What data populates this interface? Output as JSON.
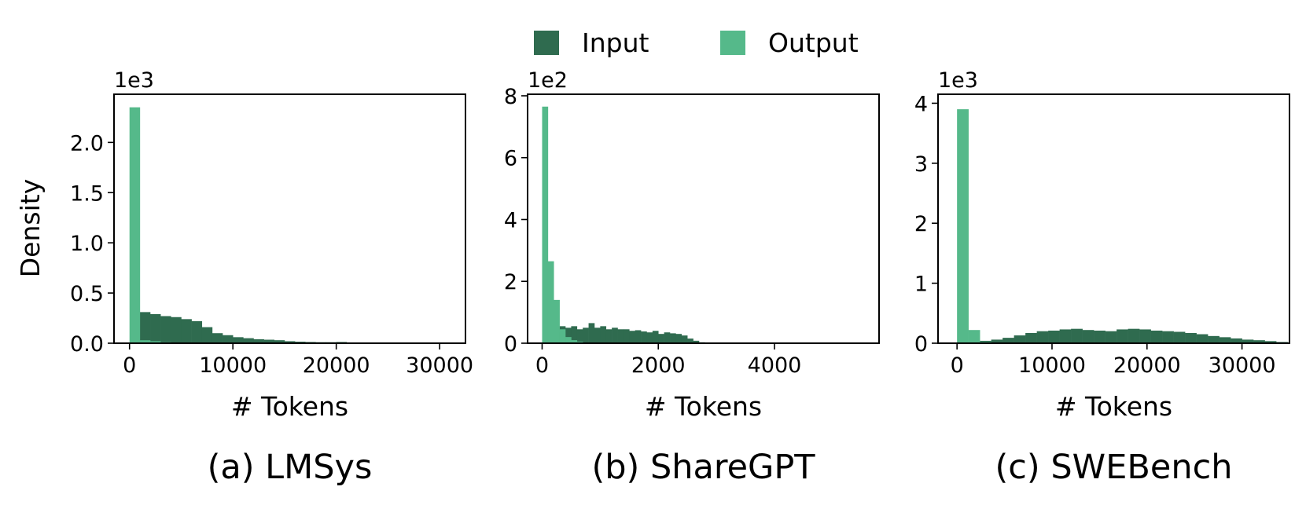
{
  "legend": {
    "items": [
      {
        "label": "Input",
        "color": "#2f6b4f"
      },
      {
        "label": "Output",
        "color": "#55b98a"
      }
    ]
  },
  "chart_data": [
    {
      "type": "bar",
      "subtype": "overlaid-histogram",
      "caption": "(a) LMSys",
      "xlabel": "# Tokens",
      "ylabel": "Density",
      "y_offset_label": "1e3",
      "xlim": [
        -1500,
        32500
      ],
      "ylim": [
        0,
        2.48
      ],
      "xticks": [
        0,
        10000,
        20000,
        30000
      ],
      "xtick_labels": [
        "0",
        "10000",
        "20000",
        "30000"
      ],
      "yticks": [
        0.0,
        0.5,
        1.0,
        1.5,
        2.0
      ],
      "ytick_labels": [
        "0.0",
        "0.5",
        "1.0",
        "1.5",
        "2.0"
      ],
      "series": [
        {
          "name": "Input",
          "bin_width": 1000,
          "bin_start": 0,
          "values": [
            0.0,
            0.31,
            0.29,
            0.27,
            0.26,
            0.24,
            0.22,
            0.16,
            0.1,
            0.08,
            0.06,
            0.05,
            0.04,
            0.035,
            0.03,
            0.02,
            0.015,
            0.012,
            0.01,
            0.01,
            0.012,
            0.006,
            0.005,
            0.004,
            0.003,
            0.002,
            0.002,
            0.001,
            0.001,
            0.001,
            0.001
          ]
        },
        {
          "name": "Output",
          "bin_width": 1000,
          "bin_start": 0,
          "values": [
            2.35,
            0.03,
            0.02,
            0.01,
            0.005,
            0.003,
            0.002
          ]
        }
      ]
    },
    {
      "type": "bar",
      "subtype": "overlaid-histogram",
      "caption": "(b) ShareGPT",
      "xlabel": "# Tokens",
      "ylabel": "",
      "y_offset_label": "1e2",
      "xlim": [
        -250,
        5800
      ],
      "ylim": [
        0,
        8.05
      ],
      "xticks": [
        0,
        2000,
        4000
      ],
      "xtick_labels": [
        "0",
        "2000",
        "4000"
      ],
      "yticks": [
        0,
        2,
        4,
        6,
        8
      ],
      "ytick_labels": [
        "0",
        "2",
        "4",
        "6",
        "8"
      ],
      "series": [
        {
          "name": "Input",
          "bin_width": 100,
          "bin_start": 0,
          "values": [
            0.0,
            0.2,
            0.35,
            0.55,
            0.5,
            0.55,
            0.45,
            0.5,
            0.65,
            0.5,
            0.55,
            0.45,
            0.5,
            0.45,
            0.45,
            0.4,
            0.42,
            0.38,
            0.35,
            0.4,
            0.3,
            0.35,
            0.32,
            0.3,
            0.25,
            0.15,
            0.08,
            0.03,
            0.02,
            0.01
          ]
        },
        {
          "name": "Output",
          "bin_width": 100,
          "bin_start": 0,
          "values": [
            7.65,
            2.65,
            1.4,
            0.45,
            0.2,
            0.1,
            0.05,
            0.02,
            0.01
          ]
        }
      ]
    },
    {
      "type": "bar",
      "subtype": "overlaid-histogram",
      "caption": "(c) SWEBench",
      "xlabel": "# Tokens",
      "ylabel": "",
      "y_offset_label": "1e3",
      "xlim": [
        -2000,
        35000
      ],
      "ylim": [
        0,
        4.15
      ],
      "xticks": [
        0,
        10000,
        20000,
        30000
      ],
      "xtick_labels": [
        "0",
        "10000",
        "20000",
        "30000"
      ],
      "yticks": [
        0,
        1,
        2,
        3,
        4
      ],
      "ytick_labels": [
        "0",
        "1",
        "2",
        "3",
        "4"
      ],
      "series": [
        {
          "name": "Input",
          "bin_width": 1200,
          "bin_start": 0,
          "values": [
            0.0,
            0.02,
            0.04,
            0.06,
            0.09,
            0.13,
            0.17,
            0.2,
            0.21,
            0.23,
            0.24,
            0.22,
            0.21,
            0.2,
            0.23,
            0.24,
            0.23,
            0.21,
            0.2,
            0.19,
            0.17,
            0.15,
            0.12,
            0.1,
            0.08,
            0.06,
            0.05,
            0.035,
            0.02,
            0.01
          ]
        },
        {
          "name": "Output",
          "bin_width": 1200,
          "bin_start": 0,
          "values": [
            3.9,
            0.22,
            0.02,
            0.005
          ]
        }
      ]
    }
  ]
}
